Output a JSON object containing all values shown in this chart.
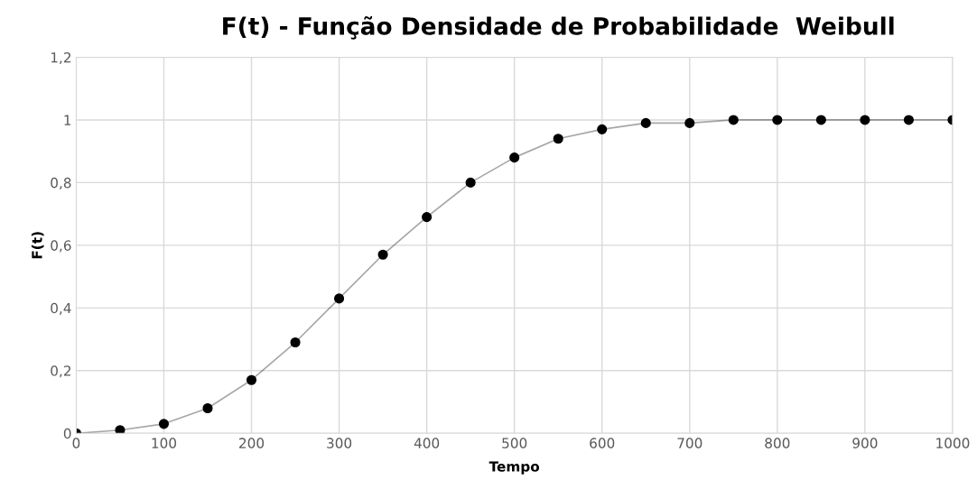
{
  "chart_data": {
    "type": "line",
    "title": "F(t) - Função Densidade de Probabilidade  Weibull",
    "xlabel": "Tempo",
    "ylabel": "F(t)",
    "x": [
      0,
      50,
      100,
      150,
      200,
      250,
      300,
      350,
      400,
      450,
      500,
      550,
      600,
      650,
      700,
      750,
      800,
      850,
      900,
      950,
      1000
    ],
    "series": [
      {
        "color": "#000000",
        "values": [
          0,
          0.01,
          0.03,
          0.08,
          0.17,
          0.29,
          0.43,
          0.57,
          0.69,
          0.8,
          0.88,
          0.94,
          0.97,
          0.99,
          0.99,
          1,
          1,
          1,
          1,
          1,
          1
        ]
      }
    ],
    "xlim": [
      0,
      1000
    ],
    "xticks": [
      0,
      100,
      200,
      300,
      400,
      500,
      600,
      700,
      800,
      900,
      1000
    ],
    "ylim": [
      0,
      1.2
    ],
    "yticks": [
      0,
      {
        "value": 0.2,
        "label": "0,2"
      },
      {
        "value": 0.4,
        "label": "0,4"
      },
      {
        "value": 0.6,
        "label": "0,6"
      },
      {
        "value": 0.8,
        "label": "0,8"
      },
      1,
      {
        "value": 1.2,
        "label": "1,2"
      }
    ],
    "grid": true,
    "marker": "circle",
    "line_style": "solid",
    "legend": false
  }
}
